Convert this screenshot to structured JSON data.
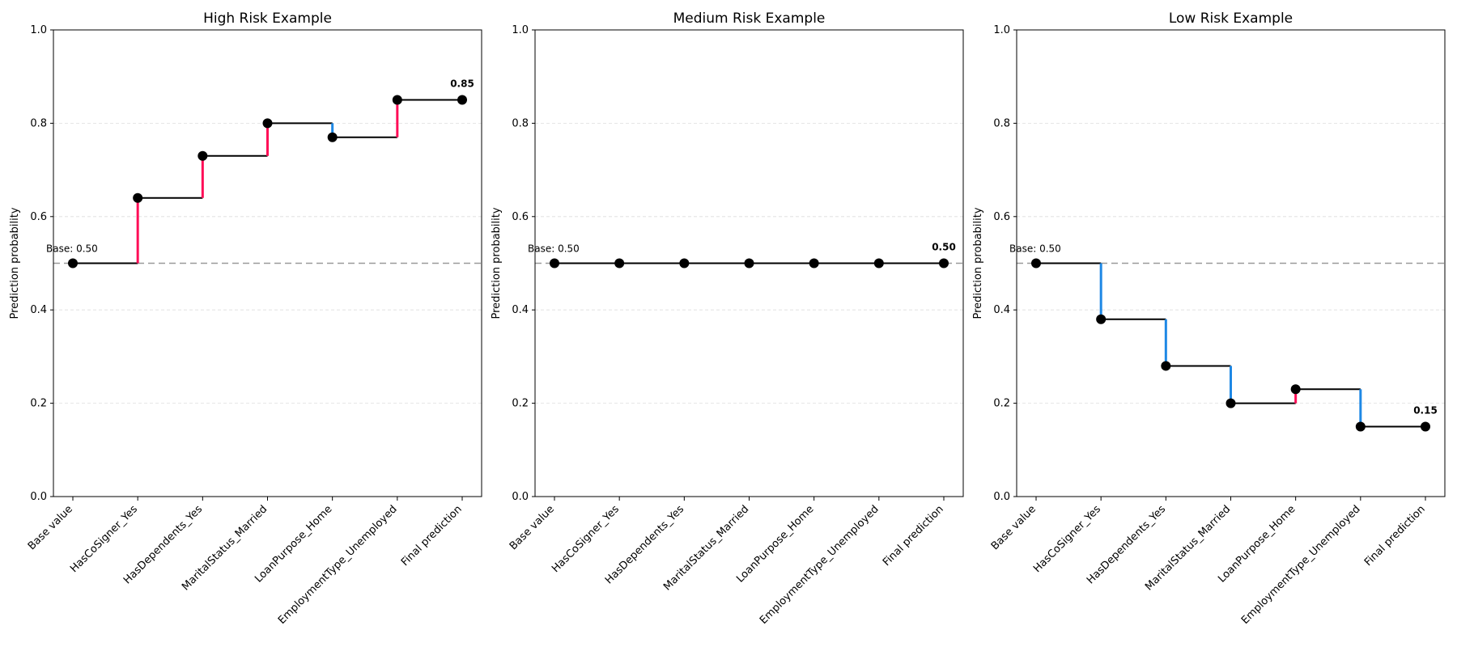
{
  "chart_data": [
    {
      "type": "line",
      "title": "High Risk Example",
      "ylabel": "Prediction probability",
      "xlabel": "",
      "ylim": [
        0,
        1
      ],
      "yticks": [
        "0.0",
        "0.2",
        "0.4",
        "0.6",
        "0.8",
        "1.0"
      ],
      "grid": true,
      "categories": [
        "Base value",
        "HasCoSigner_Yes",
        "HasDependents_Yes",
        "MaritalStatus_Married",
        "LoanPurpose_Home",
        "EmploymentType_Unemployed",
        "Final prediction"
      ],
      "values": [
        0.5,
        0.64,
        0.73,
        0.8,
        0.77,
        0.85,
        0.85
      ],
      "base_value": 0.5,
      "base_label": "Base: 0.50",
      "final_label": "0.85"
    },
    {
      "type": "line",
      "title": "Medium Risk Example",
      "ylabel": "Prediction probability",
      "xlabel": "",
      "ylim": [
        0,
        1
      ],
      "yticks": [
        "0.0",
        "0.2",
        "0.4",
        "0.6",
        "0.8",
        "1.0"
      ],
      "grid": true,
      "categories": [
        "Base value",
        "HasCoSigner_Yes",
        "HasDependents_Yes",
        "MaritalStatus_Married",
        "LoanPurpose_Home",
        "EmploymentType_Unemployed",
        "Final prediction"
      ],
      "values": [
        0.5,
        0.5,
        0.5,
        0.5,
        0.5,
        0.5,
        0.5
      ],
      "base_value": 0.5,
      "base_label": "Base: 0.50",
      "final_label": "0.50"
    },
    {
      "type": "line",
      "title": "Low Risk Example",
      "ylabel": "Prediction probability",
      "xlabel": "",
      "ylim": [
        0,
        1
      ],
      "yticks": [
        "0.0",
        "0.2",
        "0.4",
        "0.6",
        "0.8",
        "1.0"
      ],
      "grid": true,
      "categories": [
        "Base value",
        "HasCoSigner_Yes",
        "HasDependents_Yes",
        "MaritalStatus_Married",
        "LoanPurpose_Home",
        "EmploymentType_Unemployed",
        "Final prediction"
      ],
      "values": [
        0.5,
        0.38,
        0.28,
        0.2,
        0.23,
        0.15,
        0.15
      ],
      "base_value": 0.5,
      "base_label": "Base: 0.50",
      "final_label": "0.15"
    }
  ],
  "colors": {
    "increase": "#ff0d57",
    "decrease": "#1e88e5",
    "step_line": "#000000",
    "marker": "#000000",
    "base_line": "#999999",
    "grid": "#dddddd"
  }
}
